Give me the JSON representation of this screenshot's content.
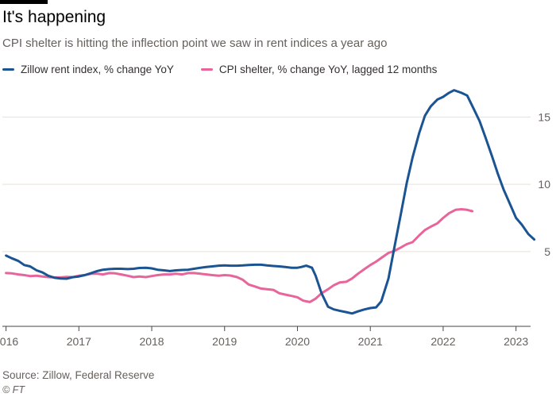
{
  "header": {
    "title": "It's happening",
    "subtitle": "CPI shelter is hitting the inflection point we saw in rent indices a year ago"
  },
  "footer": {
    "source": "Source: Zillow, Federal Reserve",
    "credit": "© FT"
  },
  "colors": {
    "zillow": "#1a5493",
    "cpi": "#e7659a",
    "grid": "#e6e0db",
    "axis": "#4a4541",
    "tick_text": "#66605c"
  },
  "chart_data": {
    "type": "line",
    "xlim": [
      2015.95,
      2023.2
    ],
    "ylim": [
      -0.5,
      17.8
    ],
    "grid": true,
    "legend_position": "top-left",
    "x_ticks": [
      {
        "label": "2016",
        "value": 2016.0
      },
      {
        "label": "2017",
        "value": 2017.0
      },
      {
        "label": "2018",
        "value": 2018.0
      },
      {
        "label": "2019",
        "value": 2019.0
      },
      {
        "label": "2020",
        "value": 2020.0
      },
      {
        "label": "2021",
        "value": 2021.0
      },
      {
        "label": "2022",
        "value": 2022.0
      },
      {
        "label": "2023",
        "value": 2023.0
      }
    ],
    "y_ticks": [
      {
        "label": "5",
        "value": 5
      },
      {
        "label": "10",
        "value": 10
      },
      {
        "label": "15",
        "value": 15
      }
    ],
    "series": [
      {
        "name": "Zillow rent index, % change YoY",
        "points": [
          [
            2016.0,
            4.7
          ],
          [
            2016.08,
            4.5
          ],
          [
            2016.17,
            4.3
          ],
          [
            2016.25,
            4.0
          ],
          [
            2016.33,
            3.9
          ],
          [
            2016.42,
            3.6
          ],
          [
            2016.5,
            3.45
          ],
          [
            2016.58,
            3.2
          ],
          [
            2016.67,
            3.05
          ],
          [
            2016.75,
            3.0
          ],
          [
            2016.83,
            2.98
          ],
          [
            2016.92,
            3.1
          ],
          [
            2017.0,
            3.15
          ],
          [
            2017.08,
            3.25
          ],
          [
            2017.17,
            3.4
          ],
          [
            2017.25,
            3.55
          ],
          [
            2017.33,
            3.65
          ],
          [
            2017.42,
            3.7
          ],
          [
            2017.5,
            3.72
          ],
          [
            2017.58,
            3.72
          ],
          [
            2017.67,
            3.7
          ],
          [
            2017.75,
            3.72
          ],
          [
            2017.83,
            3.78
          ],
          [
            2017.92,
            3.8
          ],
          [
            2018.0,
            3.75
          ],
          [
            2018.08,
            3.65
          ],
          [
            2018.17,
            3.6
          ],
          [
            2018.25,
            3.55
          ],
          [
            2018.33,
            3.6
          ],
          [
            2018.42,
            3.63
          ],
          [
            2018.5,
            3.65
          ],
          [
            2018.58,
            3.72
          ],
          [
            2018.67,
            3.8
          ],
          [
            2018.75,
            3.85
          ],
          [
            2018.83,
            3.9
          ],
          [
            2018.92,
            3.95
          ],
          [
            2019.0,
            3.97
          ],
          [
            2019.08,
            3.95
          ],
          [
            2019.17,
            3.95
          ],
          [
            2019.25,
            3.97
          ],
          [
            2019.33,
            4.0
          ],
          [
            2019.42,
            4.02
          ],
          [
            2019.5,
            4.02
          ],
          [
            2019.58,
            3.97
          ],
          [
            2019.67,
            3.93
          ],
          [
            2019.75,
            3.9
          ],
          [
            2019.83,
            3.85
          ],
          [
            2019.92,
            3.8
          ],
          [
            2020.0,
            3.8
          ],
          [
            2020.05,
            3.85
          ],
          [
            2020.12,
            3.95
          ],
          [
            2020.2,
            3.8
          ],
          [
            2020.25,
            3.2
          ],
          [
            2020.33,
            1.9
          ],
          [
            2020.42,
            0.9
          ],
          [
            2020.5,
            0.7
          ],
          [
            2020.58,
            0.6
          ],
          [
            2020.67,
            0.5
          ],
          [
            2020.75,
            0.4
          ],
          [
            2020.83,
            0.55
          ],
          [
            2020.92,
            0.7
          ],
          [
            2021.0,
            0.8
          ],
          [
            2021.08,
            0.85
          ],
          [
            2021.15,
            1.3
          ],
          [
            2021.25,
            3.0
          ],
          [
            2021.33,
            5.3
          ],
          [
            2021.42,
            7.8
          ],
          [
            2021.5,
            10.1
          ],
          [
            2021.58,
            12.0
          ],
          [
            2021.67,
            13.8
          ],
          [
            2021.75,
            15.1
          ],
          [
            2021.83,
            15.8
          ],
          [
            2021.92,
            16.3
          ],
          [
            2022.0,
            16.5
          ],
          [
            2022.08,
            16.8
          ],
          [
            2022.15,
            17.0
          ],
          [
            2022.25,
            16.8
          ],
          [
            2022.33,
            16.6
          ],
          [
            2022.42,
            15.6
          ],
          [
            2022.5,
            14.7
          ],
          [
            2022.58,
            13.5
          ],
          [
            2022.67,
            12.1
          ],
          [
            2022.75,
            10.8
          ],
          [
            2022.83,
            9.6
          ],
          [
            2022.92,
            8.5
          ],
          [
            2023.0,
            7.5
          ],
          [
            2023.08,
            7.0
          ],
          [
            2023.17,
            6.3
          ],
          [
            2023.25,
            5.9
          ]
        ]
      },
      {
        "name": "CPI shelter, % change YoY, lagged 12 months",
        "points": [
          [
            2016.0,
            3.4
          ],
          [
            2016.08,
            3.38
          ],
          [
            2016.17,
            3.3
          ],
          [
            2016.25,
            3.25
          ],
          [
            2016.33,
            3.18
          ],
          [
            2016.42,
            3.2
          ],
          [
            2016.5,
            3.15
          ],
          [
            2016.58,
            3.1
          ],
          [
            2016.67,
            3.08
          ],
          [
            2016.75,
            3.08
          ],
          [
            2016.83,
            3.12
          ],
          [
            2016.92,
            3.1
          ],
          [
            2017.0,
            3.2
          ],
          [
            2017.08,
            3.25
          ],
          [
            2017.17,
            3.35
          ],
          [
            2017.25,
            3.35
          ],
          [
            2017.33,
            3.3
          ],
          [
            2017.42,
            3.4
          ],
          [
            2017.5,
            3.38
          ],
          [
            2017.58,
            3.3
          ],
          [
            2017.67,
            3.2
          ],
          [
            2017.75,
            3.1
          ],
          [
            2017.83,
            3.15
          ],
          [
            2017.92,
            3.1
          ],
          [
            2018.0,
            3.18
          ],
          [
            2018.08,
            3.25
          ],
          [
            2018.17,
            3.3
          ],
          [
            2018.25,
            3.3
          ],
          [
            2018.33,
            3.35
          ],
          [
            2018.42,
            3.3
          ],
          [
            2018.5,
            3.4
          ],
          [
            2018.58,
            3.4
          ],
          [
            2018.67,
            3.35
          ],
          [
            2018.75,
            3.3
          ],
          [
            2018.83,
            3.25
          ],
          [
            2018.92,
            3.2
          ],
          [
            2019.0,
            3.25
          ],
          [
            2019.08,
            3.22
          ],
          [
            2019.17,
            3.1
          ],
          [
            2019.25,
            2.9
          ],
          [
            2019.33,
            2.55
          ],
          [
            2019.42,
            2.4
          ],
          [
            2019.5,
            2.25
          ],
          [
            2019.58,
            2.2
          ],
          [
            2019.67,
            2.15
          ],
          [
            2019.75,
            1.9
          ],
          [
            2019.83,
            1.8
          ],
          [
            2019.92,
            1.7
          ],
          [
            2020.0,
            1.6
          ],
          [
            2020.08,
            1.35
          ],
          [
            2020.17,
            1.25
          ],
          [
            2020.25,
            1.5
          ],
          [
            2020.33,
            1.9
          ],
          [
            2020.42,
            2.2
          ],
          [
            2020.5,
            2.5
          ],
          [
            2020.58,
            2.7
          ],
          [
            2020.67,
            2.75
          ],
          [
            2020.75,
            3.0
          ],
          [
            2020.83,
            3.35
          ],
          [
            2020.92,
            3.7
          ],
          [
            2021.0,
            4.0
          ],
          [
            2021.08,
            4.25
          ],
          [
            2021.17,
            4.6
          ],
          [
            2021.25,
            4.9
          ],
          [
            2021.33,
            5.05
          ],
          [
            2021.42,
            5.3
          ],
          [
            2021.5,
            5.55
          ],
          [
            2021.58,
            5.7
          ],
          [
            2021.67,
            6.2
          ],
          [
            2021.75,
            6.6
          ],
          [
            2021.83,
            6.85
          ],
          [
            2021.92,
            7.1
          ],
          [
            2022.0,
            7.5
          ],
          [
            2022.08,
            7.85
          ],
          [
            2022.17,
            8.1
          ],
          [
            2022.25,
            8.15
          ],
          [
            2022.33,
            8.1
          ],
          [
            2022.4,
            8.0
          ]
        ]
      }
    ]
  }
}
